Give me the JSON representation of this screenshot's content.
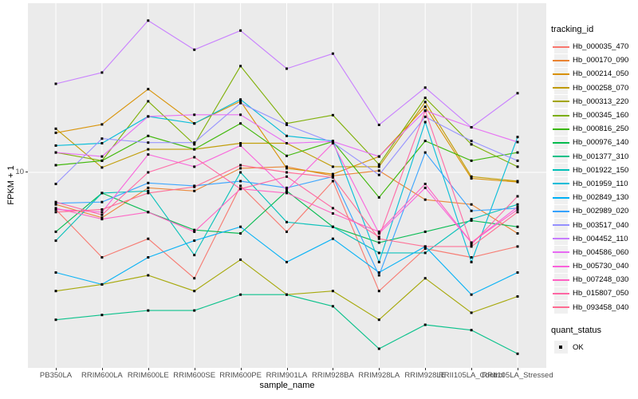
{
  "figure": {
    "background": "#FFFFFF",
    "panel_background": "#EBEBEB",
    "grid_color": "#FFFFFF",
    "tick_color": "#333333",
    "axis_text_color": "#4D4D4D",
    "title_text_color": "#000000",
    "point_color": "#000000"
  },
  "x_axis": {
    "label": "sample_name"
  },
  "y_axis": {
    "label": "FPKM + 1",
    "tick_labels": [
      "10"
    ]
  },
  "legend": {
    "tracking": {
      "title": "tracking_id"
    },
    "quant": {
      "title": "quant_status",
      "items": [
        {
          "label": "OK",
          "marker": "black-square-point"
        }
      ]
    }
  },
  "chart_data": {
    "type": "line",
    "xlabel": "sample_name",
    "ylabel": "FPKM + 1",
    "yscale": "log10",
    "y_ticks": [
      10
    ],
    "ylim": [
      1.0,
      75
    ],
    "grid": "major",
    "legend_position": "right",
    "point_marker": {
      "shape": "square",
      "color": "#000000",
      "status_label": "OK"
    },
    "x": [
      "PB350LA",
      "RRIM600LA",
      "RRIM600LE",
      "RRIM600SE",
      "RRIM600PE",
      "RRIM901LA",
      "RRIM928BA",
      "RRIM928LA",
      "RRIM928LE",
      "RRII105LA_Control",
      "RRII105LA_Stressed"
    ],
    "series": [
      {
        "name": "Hb_000035_470",
        "color": "#F8766D",
        "values": [
          6.4,
          3.6,
          4.5,
          2.8,
          8.5,
          4.9,
          9.0,
          2.4,
          4.0,
          3.6,
          4.1
        ]
      },
      {
        "name": "Hb_000170_090",
        "color": "#EA8331",
        "values": [
          6.8,
          5.8,
          8.3,
          8.0,
          10.5,
          10.7,
          9.6,
          10.2,
          7.2,
          6.8,
          4.8
        ]
      },
      {
        "name": "Hb_000214_050",
        "color": "#D89000",
        "values": [
          16.1,
          17.8,
          27.2,
          18.0,
          23.5,
          10.5,
          9.8,
          12.1,
          22.0,
          9.3,
          8.9
        ]
      },
      {
        "name": "Hb_000258_070",
        "color": "#C09B00",
        "values": [
          16.9,
          10.6,
          13.2,
          13.2,
          14.2,
          14.2,
          10.7,
          10.7,
          23.3,
          9.5,
          9.0
        ]
      },
      {
        "name": "Hb_000313_220",
        "color": "#A3A500",
        "values": [
          2.4,
          2.6,
          2.9,
          2.4,
          3.5,
          2.3,
          2.4,
          1.7,
          2.8,
          1.85,
          2.25
        ]
      },
      {
        "name": "Hb_000345_160",
        "color": "#7CAE00",
        "values": [
          12.7,
          11.5,
          23.5,
          14.0,
          35.9,
          18.0,
          19.9,
          11.0,
          24.5,
          14.0,
          10.7
        ]
      },
      {
        "name": "Hb_000816_250",
        "color": "#39B600",
        "values": [
          10.9,
          11.5,
          15.5,
          13.2,
          18.0,
          12.2,
          14.5,
          7.4,
          14.6,
          11.5,
          12.7
        ]
      },
      {
        "name": "Hb_000976_140",
        "color": "#00BB4E",
        "values": [
          4.9,
          7.8,
          6.2,
          5.0,
          4.8,
          8.0,
          5.2,
          4.3,
          4.9,
          5.6,
          5.2
        ]
      },
      {
        "name": "Hb_001377_310",
        "color": "#00C087",
        "values": [
          1.7,
          1.8,
          1.9,
          1.9,
          2.3,
          2.3,
          2.0,
          1.2,
          1.6,
          1.5,
          1.13
        ]
      },
      {
        "name": "Hb_001922_150",
        "color": "#00C0B8",
        "values": [
          4.4,
          7.8,
          8.0,
          3.7,
          10.0,
          5.5,
          5.2,
          3.8,
          3.8,
          5.7,
          6.8
        ]
      },
      {
        "name": "Hb_001959_110",
        "color": "#00BCD8",
        "values": [
          13.8,
          14.2,
          19.6,
          18.0,
          24.0,
          15.5,
          14.6,
          3.4,
          18.3,
          3.4,
          15.3
        ]
      },
      {
        "name": "Hb_002849_130",
        "color": "#00B0F6",
        "values": [
          3.0,
          2.6,
          3.6,
          4.4,
          5.2,
          3.4,
          4.5,
          3.0,
          4.1,
          2.3,
          3.0
        ]
      },
      {
        "name": "Hb_002989_020",
        "color": "#35A2FF",
        "values": [
          6.9,
          7.0,
          8.8,
          8.5,
          9.0,
          8.3,
          9.5,
          2.9,
          12.7,
          6.3,
          6.5
        ]
      },
      {
        "name": "Hb_003517_040",
        "color": "#9590FF",
        "values": [
          8.7,
          15.0,
          14.3,
          14.3,
          23.0,
          17.7,
          14.3,
          9.7,
          19.5,
          14.6,
          11.5
        ]
      },
      {
        "name": "Hb_004452_110",
        "color": "#C77CFF",
        "values": [
          29.0,
          33.2,
          62.0,
          43.7,
          55.0,
          34.8,
          41.7,
          17.7,
          27.7,
          17.2,
          25.9
        ]
      },
      {
        "name": "Hb_004586_060",
        "color": "#E76BF3",
        "values": [
          12.7,
          12.1,
          19.6,
          20.0,
          20.0,
          14.2,
          14.5,
          12.1,
          21.0,
          17.2,
          14.4
        ]
      },
      {
        "name": "Hb_005730_040",
        "color": "#FA62DB",
        "values": [
          6.4,
          6.2,
          12.4,
          10.7,
          13.8,
          8.1,
          14.2,
          4.8,
          8.3,
          4.3,
          6.6
        ]
      },
      {
        "name": "Hb_007248_030",
        "color": "#FF61C3",
        "values": [
          6.5,
          5.7,
          6.2,
          4.9,
          8.2,
          7.8,
          6.1,
          4.9,
          8.7,
          4.3,
          6.4
        ]
      },
      {
        "name": "Hb_015807_050",
        "color": "#FF67A4",
        "values": [
          7.0,
          6.0,
          10.0,
          12.0,
          8.2,
          9.5,
          6.5,
          4.6,
          21.0,
          4.2,
          7.5
        ]
      },
      {
        "name": "Hb_093458_040",
        "color": "#FF6C92",
        "values": [
          6.2,
          6.4,
          7.8,
          8.4,
          10.9,
          10.0,
          9.4,
          4.5,
          4.1,
          4.1,
          6.2
        ]
      }
    ]
  }
}
